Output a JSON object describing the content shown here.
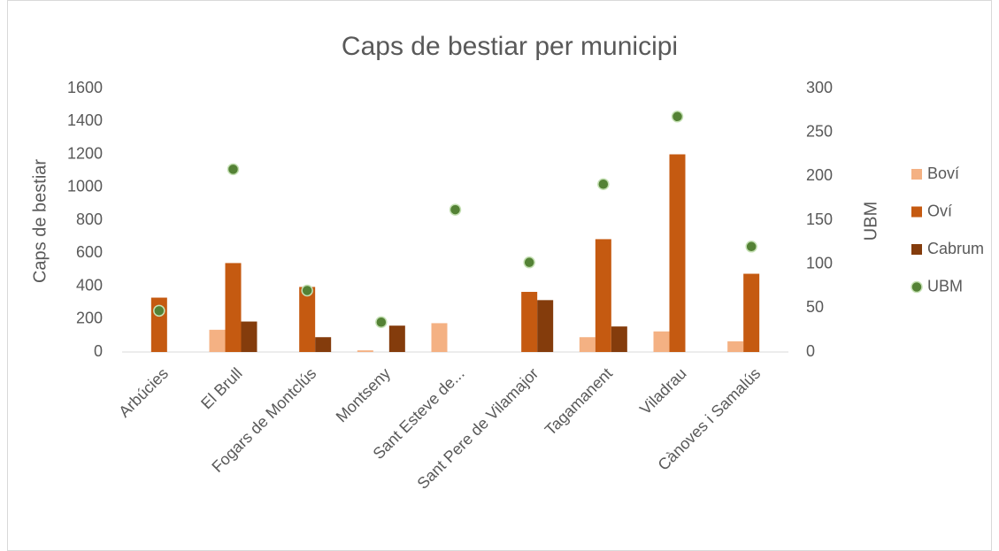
{
  "chart_data": {
    "type": "bar",
    "title": "Caps de bestiar per municipi",
    "ylabel": "Caps de bestiar",
    "y2label": "UBM",
    "categories": [
      "Arbúcies",
      "El Brull",
      "Fogars de Montclús",
      "Montseny",
      "Sant Esteve de...",
      "Sant Pere de Vilamajor",
      "Tagamanent",
      "Viladrau",
      "Cànoves i Samalús"
    ],
    "series": [
      {
        "name": "Boví",
        "color": "#f4b183",
        "type": "bar",
        "values": [
          0,
          135,
          0,
          10,
          175,
          0,
          90,
          125,
          65
        ]
      },
      {
        "name": "Oví",
        "color": "#c55a11",
        "type": "bar",
        "values": [
          330,
          540,
          395,
          0,
          0,
          365,
          685,
          1200,
          475
        ]
      },
      {
        "name": "Cabrum",
        "color": "#843c0c",
        "type": "bar",
        "values": [
          0,
          185,
          90,
          160,
          0,
          315,
          155,
          0,
          0
        ]
      },
      {
        "name": "UBM",
        "color": "#548235",
        "type": "scatter",
        "axis": "y2",
        "values": [
          47,
          208,
          70,
          34,
          162,
          102,
          191,
          268,
          120
        ]
      }
    ],
    "ylim": [
      0,
      1600
    ],
    "yticks": [
      0,
      200,
      400,
      600,
      800,
      1000,
      1200,
      1400,
      1600
    ],
    "y2lim": [
      0,
      300
    ],
    "y2ticks": [
      0,
      50,
      100,
      150,
      200,
      250,
      300
    ],
    "grid": false,
    "legend": "right"
  }
}
